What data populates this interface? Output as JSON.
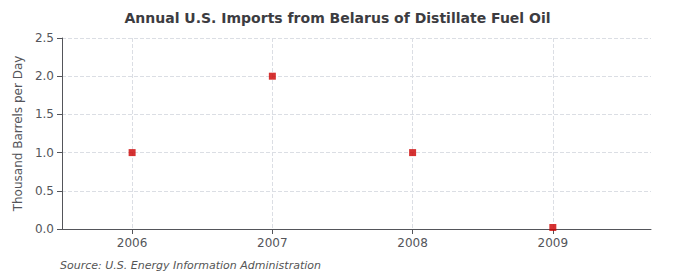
{
  "chart_data": {
    "type": "scatter",
    "title": "Annual U.S. Imports from Belarus of Distillate Fuel Oil",
    "ylabel": "Thousand Barrels per Day",
    "annotations": [
      "Source: U.S. Energy Information Administration"
    ],
    "x": [
      2006,
      2007,
      2008,
      2009
    ],
    "values": [
      1.0,
      2.0,
      1.0,
      0.02
    ],
    "color": "#cc0000",
    "marker": "square",
    "xlim": [
      2005.5,
      2009.7
    ],
    "xticks": [
      2006,
      2007,
      2008,
      2009
    ],
    "ylim": [
      0.0,
      2.5
    ],
    "yticks": [
      {
        "value": 0.0,
        "label": "0.0"
      },
      0.5,
      {
        "value": 1.0,
        "label": "1.0"
      },
      1.5,
      {
        "value": 2.0,
        "label": "2.0"
      },
      2.5
    ],
    "grid": true
  }
}
